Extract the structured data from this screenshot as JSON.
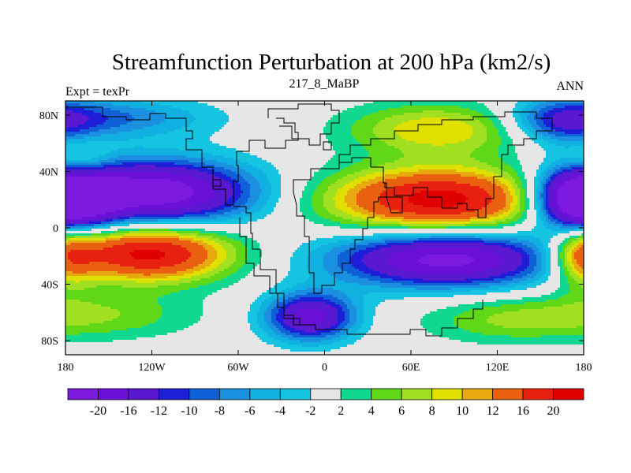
{
  "chart_data": {
    "type": "heatmap",
    "title": "Streamfunction Perturbation at 200 hPa (km2/s)",
    "left_label": "Expt = texPr",
    "center_label": "217_8_MaBP",
    "right_label": "ANN",
    "x_ticks": [
      {
        "lon": -180,
        "label": "180"
      },
      {
        "lon": -120,
        "label": "120W"
      },
      {
        "lon": -60,
        "label": "60W"
      },
      {
        "lon": 0,
        "label": "0"
      },
      {
        "lon": 60,
        "label": "60E"
      },
      {
        "lon": 120,
        "label": "120E"
      },
      {
        "lon": 180,
        "label": "180"
      }
    ],
    "y_ticks": [
      {
        "lat": 80,
        "label": "80N"
      },
      {
        "lat": 40,
        "label": "40N"
      },
      {
        "lat": 0,
        "label": "0"
      },
      {
        "lat": -40,
        "label": "40S"
      },
      {
        "lat": -80,
        "label": "80S"
      }
    ],
    "xlim": [
      -180,
      180
    ],
    "ylim": [
      -90,
      90
    ],
    "colorbar": {
      "labels": [
        "-20",
        "-16",
        "-12",
        "-10",
        "-8",
        "-6",
        "-4",
        "-2",
        "2",
        "4",
        "6",
        "8",
        "10",
        "12",
        "16",
        "20"
      ],
      "levels": [
        -20,
        -16,
        -12,
        -10,
        -8,
        -6,
        -4,
        -2,
        2,
        4,
        6,
        8,
        10,
        12,
        16,
        20
      ],
      "colors": [
        "#7d1ae0",
        "#6a10d8",
        "#5a18d0",
        "#1e1ed8",
        "#1060d8",
        "#1c90e0",
        "#10b0e0",
        "#14c4e0",
        "#e6e6e6",
        "#10d890",
        "#60d818",
        "#a0e020",
        "#e0e000",
        "#e8a810",
        "#e86010",
        "#e82010",
        "#e00000"
      ]
    },
    "field_features": [
      {
        "lon": -120,
        "lat": 25,
        "amp": -24,
        "sx": 50,
        "sy": 16
      },
      {
        "lon": -125,
        "lat": -18,
        "amp": 22,
        "sx": 42,
        "sy": 14
      },
      {
        "lon": 80,
        "lat": 20,
        "amp": 22,
        "sx": 55,
        "sy": 16
      },
      {
        "lon": 85,
        "lat": -22,
        "amp": -22,
        "sx": 55,
        "sy": 14
      },
      {
        "lon": -10,
        "lat": -63,
        "amp": -18,
        "sx": 22,
        "sy": 12
      },
      {
        "lon": 80,
        "lat": 70,
        "amp": 10,
        "sx": 45,
        "sy": 13
      },
      {
        "lon": 180,
        "lat": 20,
        "amp": -15,
        "sx": 22,
        "sy": 15
      },
      {
        "lon": -180,
        "lat": 20,
        "amp": -15,
        "sx": 22,
        "sy": 15
      },
      {
        "lon": 165,
        "lat": 75,
        "amp": -10,
        "sx": 25,
        "sy": 12
      },
      {
        "lon": -150,
        "lat": 78,
        "amp": -8,
        "sx": 50,
        "sy": 10
      },
      {
        "lon": 180,
        "lat": -20,
        "amp": 12,
        "sx": 15,
        "sy": 15
      },
      {
        "lon": -170,
        "lat": 45,
        "amp": 6,
        "sx": 15,
        "sy": 10
      },
      {
        "lon": -160,
        "lat": -62,
        "amp": 6,
        "sx": 50,
        "sy": 12
      },
      {
        "lon": 120,
        "lat": -65,
        "amp": 5,
        "sx": 40,
        "sy": 12
      }
    ]
  }
}
